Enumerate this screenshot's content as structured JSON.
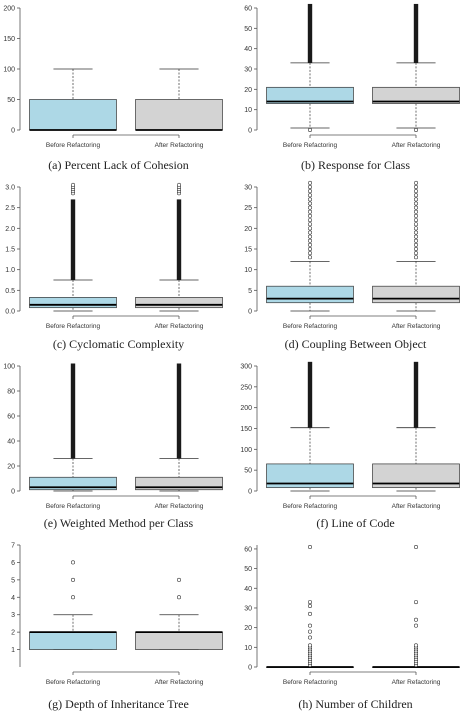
{
  "chart_data": [
    {
      "type": "boxplot",
      "caption": "(a) Percent Lack of Cohesion",
      "ylim": [
        0,
        200
      ],
      "yticks": [
        0,
        50,
        100,
        150,
        200
      ],
      "categories": [
        "Before Refactoring",
        "After Refactoring"
      ],
      "colors": [
        "#add8e6",
        "#d3d3d3"
      ],
      "boxes": [
        {
          "label": "Before Refactoring",
          "whisker_low": 0,
          "q1": 0,
          "median": 0,
          "q3": 50,
          "whisker_high": 100,
          "outliers": [],
          "outlier_band": null
        },
        {
          "label": "After Refactoring",
          "whisker_low": 0,
          "q1": 0,
          "median": 0,
          "q3": 50,
          "whisker_high": 100,
          "outliers": [],
          "outlier_band": null
        }
      ]
    },
    {
      "type": "boxplot",
      "caption": "(b) Response for Class",
      "ylim": [
        0,
        60
      ],
      "yticks": [
        0,
        10,
        20,
        30,
        40,
        50,
        60
      ],
      "categories": [
        "Before Refactoring",
        "After Refactoring"
      ],
      "colors": [
        "#add8e6",
        "#d3d3d3"
      ],
      "boxes": [
        {
          "label": "Before Refactoring",
          "whisker_low": 1,
          "q1": 13,
          "median": 14,
          "q3": 21,
          "whisker_high": 33,
          "outliers": [
            0
          ],
          "outlier_band": [
            33,
            62
          ]
        },
        {
          "label": "After Refactoring",
          "whisker_low": 1,
          "q1": 13,
          "median": 14,
          "q3": 21,
          "whisker_high": 33,
          "outliers": [
            0
          ],
          "outlier_band": [
            33,
            62
          ]
        }
      ]
    },
    {
      "type": "boxplot",
      "caption": "(c) Cyclomatic Complexity",
      "ylim": [
        0,
        3
      ],
      "yticks": [
        0.0,
        0.5,
        1.0,
        1.5,
        2.0,
        2.5,
        3.0
      ],
      "ytick_labels": [
        "0.0",
        "0.5",
        "1.0",
        "1.5",
        "2.0",
        "2.5",
        "3.0"
      ],
      "categories": [
        "Before Refactoring",
        "After Refactoring"
      ],
      "colors": [
        "#add8e6",
        "#d3d3d3"
      ],
      "boxes": [
        {
          "label": "Before Refactoring",
          "whisker_low": 0,
          "q1": 0.08,
          "median": 0.15,
          "q3": 0.33,
          "whisker_high": 0.75,
          "outliers": [
            2.85,
            2.9,
            2.95,
            3.0,
            3.05
          ],
          "outlier_band": [
            0.75,
            2.7
          ]
        },
        {
          "label": "After Refactoring",
          "whisker_low": 0,
          "q1": 0.08,
          "median": 0.15,
          "q3": 0.33,
          "whisker_high": 0.75,
          "outliers": [
            2.85,
            2.9,
            2.95,
            3.0,
            3.05
          ],
          "outlier_band": [
            0.75,
            2.7
          ]
        }
      ]
    },
    {
      "type": "boxplot",
      "caption": "(d) Coupling Between Object",
      "ylim": [
        0,
        30
      ],
      "yticks": [
        0,
        5,
        10,
        15,
        20,
        25,
        30
      ],
      "categories": [
        "Before Refactoring",
        "After Refactoring"
      ],
      "colors": [
        "#add8e6",
        "#d3d3d3"
      ],
      "boxes": [
        {
          "label": "Before Refactoring",
          "whisker_low": 0,
          "q1": 2,
          "median": 3,
          "q3": 6,
          "whisker_high": 12,
          "outliers": [
            13,
            14,
            15,
            16,
            17,
            18,
            19,
            20,
            21,
            22,
            23,
            24,
            25,
            26,
            27,
            28,
            29,
            30,
            31
          ],
          "outlier_band": null
        },
        {
          "label": "After Refactoring",
          "whisker_low": 0,
          "q1": 2,
          "median": 3,
          "q3": 6,
          "whisker_high": 12,
          "outliers": [
            13,
            14,
            15,
            16,
            17,
            18,
            19,
            20,
            21,
            22,
            23,
            24,
            25,
            26,
            27,
            28,
            29,
            30,
            31
          ],
          "outlier_band": null
        }
      ]
    },
    {
      "type": "boxplot",
      "caption": "(e) Weighted Method per Class",
      "ylim": [
        0,
        100
      ],
      "yticks": [
        0,
        20,
        40,
        60,
        80,
        100
      ],
      "categories": [
        "Before Refactoring",
        "After Refactoring"
      ],
      "colors": [
        "#add8e6",
        "#d3d3d3"
      ],
      "boxes": [
        {
          "label": "Before Refactoring",
          "whisker_low": 0,
          "q1": 1,
          "median": 3,
          "q3": 11,
          "whisker_high": 26,
          "outliers": [],
          "outlier_band": [
            26,
            102
          ]
        },
        {
          "label": "After Refactoring",
          "whisker_low": 0,
          "q1": 1,
          "median": 3,
          "q3": 11,
          "whisker_high": 26,
          "outliers": [],
          "outlier_band": [
            26,
            102
          ]
        }
      ]
    },
    {
      "type": "boxplot",
      "caption": "(f) Line of Code",
      "ylim": [
        0,
        300
      ],
      "yticks": [
        0,
        50,
        100,
        150,
        200,
        250,
        300
      ],
      "categories": [
        "Before Refactoring",
        "After Refactoring"
      ],
      "colors": [
        "#add8e6",
        "#d3d3d3"
      ],
      "boxes": [
        {
          "label": "Before Refactoring",
          "whisker_low": 0,
          "q1": 8,
          "median": 18,
          "q3": 65,
          "whisker_high": 152,
          "outliers": [],
          "outlier_band": [
            152,
            310
          ]
        },
        {
          "label": "After Refactoring",
          "whisker_low": 0,
          "q1": 8,
          "median": 18,
          "q3": 65,
          "whisker_high": 152,
          "outliers": [],
          "outlier_band": [
            152,
            310
          ]
        }
      ]
    },
    {
      "type": "boxplot",
      "caption": "(g) Depth of Inheritance Tree",
      "ylim": [
        0,
        7
      ],
      "yticks": [
        1,
        2,
        3,
        4,
        5,
        6,
        7
      ],
      "categories": [
        "Before Refactoring",
        "After Refactoring"
      ],
      "colors": [
        "#add8e6",
        "#d3d3d3"
      ],
      "boxes": [
        {
          "label": "Before Refactoring",
          "whisker_low": 1,
          "q1": 1,
          "median": 2,
          "q3": 2,
          "whisker_high": 3,
          "outliers": [
            4,
            5,
            6
          ],
          "outlier_band": null
        },
        {
          "label": "After Refactoring",
          "whisker_low": 1,
          "q1": 1,
          "median": 2,
          "q3": 2,
          "whisker_high": 3,
          "outliers": [
            4,
            5
          ],
          "outlier_band": null
        }
      ]
    },
    {
      "type": "boxplot",
      "caption": "(h) Number of Children",
      "ylim": [
        0,
        62
      ],
      "yticks": [
        0,
        10,
        20,
        30,
        40,
        50,
        60
      ],
      "categories": [
        "Before Refactoring",
        "After Refactoring"
      ],
      "colors": [
        "#add8e6",
        "#d3d3d3"
      ],
      "boxes": [
        {
          "label": "Before Refactoring",
          "whisker_low": 0,
          "q1": 0,
          "median": 0,
          "q3": 0,
          "whisker_high": 0,
          "outliers": [
            1,
            2,
            3,
            4,
            5,
            6,
            7,
            8,
            9,
            10,
            11,
            15,
            18,
            21,
            27,
            31,
            33,
            61
          ],
          "outlier_band": null
        },
        {
          "label": "After Refactoring",
          "whisker_low": 0,
          "q1": 0,
          "median": 0,
          "q3": 0,
          "whisker_high": 0,
          "outliers": [
            1,
            2,
            3,
            4,
            5,
            6,
            7,
            8,
            9,
            10,
            11,
            21,
            24,
            33,
            61
          ],
          "outlier_band": null
        }
      ]
    }
  ]
}
